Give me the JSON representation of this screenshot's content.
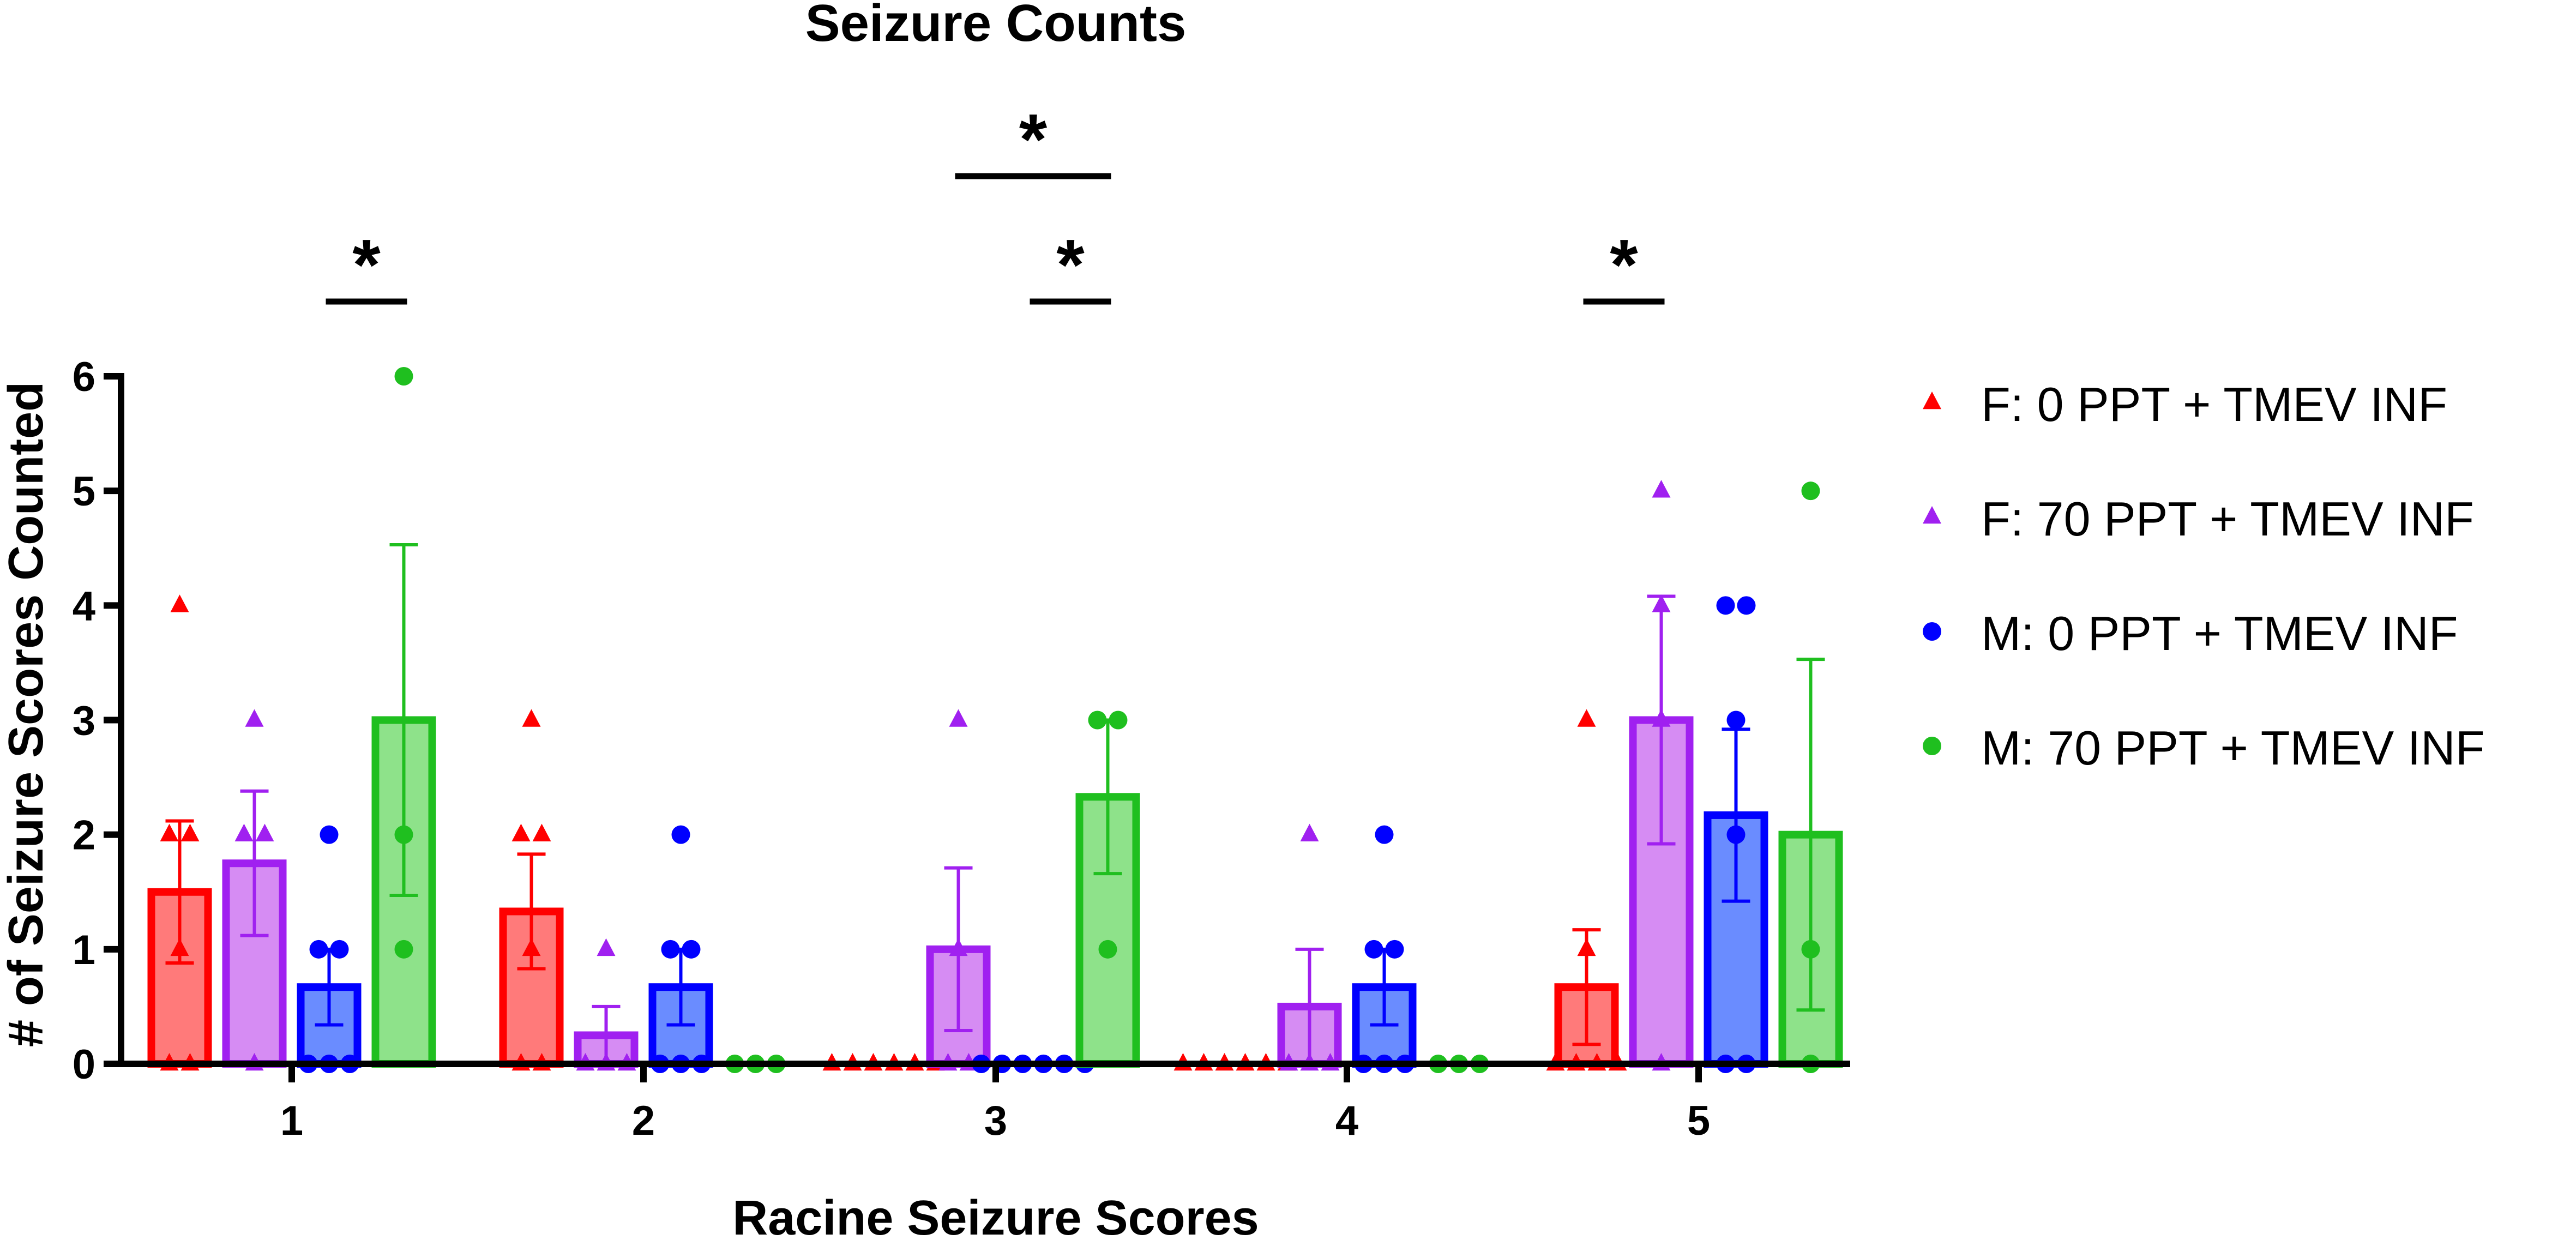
{
  "chart_data": {
    "type": "bar",
    "title": "Seizure Counts",
    "xlabel": "Racine Seizure Scores",
    "ylabel": "# of Seizure Scores Counted",
    "categories": [
      "1",
      "2",
      "3",
      "4",
      "5"
    ],
    "ylim": [
      0,
      6
    ],
    "yticks": [
      "0",
      "1",
      "2",
      "3",
      "4",
      "5",
      "6"
    ],
    "grid": false,
    "legend_position": "right",
    "series": [
      {
        "name": "F: 0 PPT + TMEV INF",
        "marker": "triangle",
        "color": "#ff0000",
        "fill": "#ff7a7a",
        "values": [
          1.5,
          1.33,
          0,
          0,
          0.67
        ],
        "error": [
          0.62,
          0.5,
          0,
          0,
          0.5
        ],
        "points": [
          [
            4,
            2,
            2,
            1,
            0,
            0
          ],
          [
            3,
            2,
            2,
            1,
            0,
            0
          ],
          [
            0,
            0,
            0,
            0,
            0,
            0
          ],
          [
            0,
            0,
            0,
            0,
            0,
            0
          ],
          [
            3,
            1,
            0,
            0,
            0,
            0
          ]
        ]
      },
      {
        "name": "F: 70 PPT + TMEV INF",
        "marker": "triangle",
        "color": "#a020f0",
        "fill": "#d68cf3",
        "values": [
          1.75,
          0.25,
          1,
          0.5,
          3
        ],
        "error": [
          0.63,
          0.25,
          0.71,
          0.5,
          1.08
        ],
        "points": [
          [
            3,
            2,
            2,
            0
          ],
          [
            1,
            0,
            0,
            0
          ],
          [
            3,
            1,
            0,
            0
          ],
          [
            2,
            0,
            0,
            0
          ],
          [
            5,
            4,
            3,
            0
          ]
        ]
      },
      {
        "name": "M: 0 PPT + TMEV INF",
        "marker": "circle",
        "color": "#0000ff",
        "fill": "#6a8cff",
        "values": [
          0.67,
          0.67,
          0,
          0.67,
          2.17
        ],
        "error": [
          0.33,
          0.33,
          0,
          0.33,
          0.75
        ],
        "points": [
          [
            2,
            1,
            1,
            0,
            0,
            0
          ],
          [
            2,
            1,
            1,
            0,
            0,
            0
          ],
          [
            0,
            0,
            0,
            0,
            0,
            0
          ],
          [
            2,
            1,
            1,
            0,
            0,
            0
          ],
          [
            4,
            4,
            3,
            2,
            0,
            0
          ]
        ]
      },
      {
        "name": "M: 70 PPT + TMEV INF",
        "marker": "circle",
        "color": "#1fbf1f",
        "fill": "#8ee28a",
        "values": [
          3,
          0,
          2.33,
          0,
          2
        ],
        "error": [
          1.53,
          0,
          0.67,
          0,
          1.53
        ],
        "points": [
          [
            6,
            2,
            1
          ],
          [
            0,
            0,
            0
          ],
          [
            3,
            3,
            1
          ],
          [
            0,
            0,
            0
          ],
          [
            5,
            1,
            0
          ]
        ]
      }
    ],
    "significance": [
      {
        "label": "*",
        "category": "1",
        "from_series": 2,
        "to_series": 3
      },
      {
        "label": "*",
        "category": "3",
        "from_series": 1,
        "to_series": 3
      },
      {
        "label": "*",
        "category": "3",
        "from_series": 2,
        "to_series": 3
      },
      {
        "label": "*",
        "category": "5",
        "from_series": 0,
        "to_series": 1
      }
    ]
  }
}
